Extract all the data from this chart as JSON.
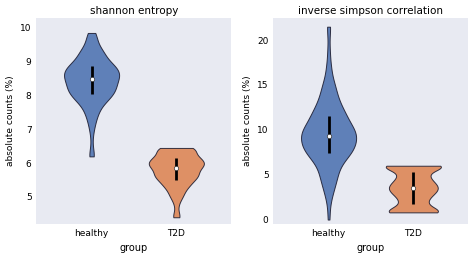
{
  "plot1": {
    "title": "shannon entropy",
    "ylabel": "absolute counts (%)",
    "xlabel": "group",
    "xlabels": [
      "healthy",
      "T2D"
    ],
    "healthy": {
      "color": "#4c72b0",
      "median": 8.5,
      "q1": 8.1,
      "q3": 8.9,
      "whislo": 6.2,
      "whishi": 9.85
    },
    "t2d": {
      "color": "#dd8452",
      "median": 5.9,
      "q1": 5.72,
      "q3": 6.05,
      "whislo": 4.4,
      "whishi": 6.45
    },
    "ylim": [
      4.2,
      10.3
    ]
  },
  "plot2": {
    "title": "inverse simpson correlation",
    "ylabel": "absolute counts (%)",
    "xlabel": "group",
    "xlabels": [
      "healthy",
      "T2D"
    ],
    "healthy": {
      "color": "#4c72b0",
      "median": 8.5,
      "q1": 6.5,
      "q3": 10.5,
      "whislo": 0.0,
      "whishi": 21.5
    },
    "t2d": {
      "color": "#dd8452",
      "median": 3.5,
      "q1": 2.8,
      "q3": 4.5,
      "whislo": 0.8,
      "whishi": 6.0
    },
    "ylim": [
      -0.5,
      22.5
    ]
  },
  "ax_bg_color": "#e8eaf2",
  "fig_bg_color": "#ffffff"
}
